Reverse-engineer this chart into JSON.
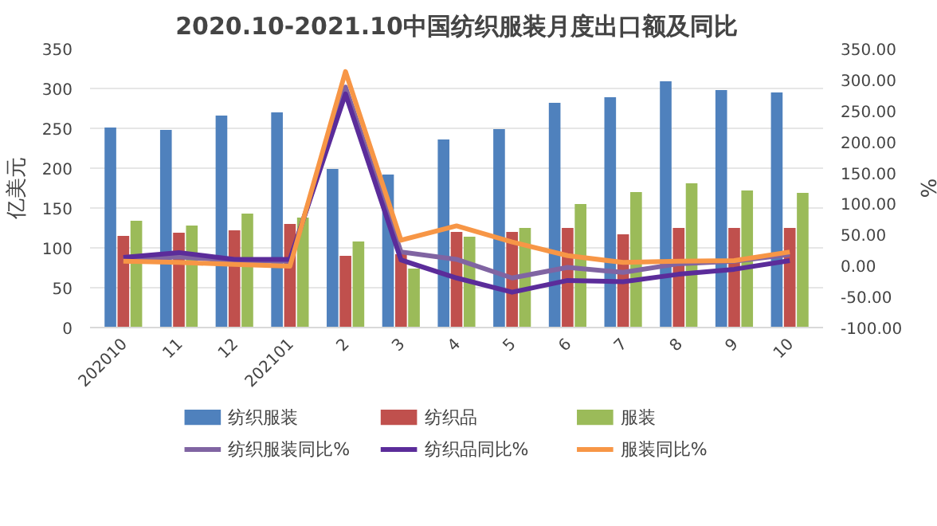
{
  "chart_data": {
    "type": "bar",
    "title": "2020.10-2021.10中国纺织服装月度出口额及同比",
    "ylabel": "亿美元",
    "y2label": "%",
    "categories": [
      "202010",
      "11",
      "12",
      "202101",
      "2",
      "3",
      "4",
      "5",
      "6",
      "7",
      "8",
      "9",
      "10"
    ],
    "series": [
      {
        "name": "纺织服装",
        "color": "#4f81bd",
        "values": [
          251,
          248,
          266,
          270,
          199,
          192,
          236,
          249,
          282,
          289,
          309,
          298,
          295
        ]
      },
      {
        "name": "纺织品",
        "color": "#c0504d",
        "values": [
          115,
          119,
          122,
          130,
          90,
          92,
          120,
          120,
          125,
          117,
          125,
          125,
          125
        ]
      },
      {
        "name": "服装",
        "color": "#9bbb59",
        "values": [
          134,
          128,
          143,
          138,
          108,
          74,
          114,
          125,
          155,
          170,
          181,
          172,
          169
        ]
      },
      {
        "name": "纺织服装同比%",
        "type": "line",
        "axis": "y2",
        "color": "#8064a2",
        "values": [
          10,
          14,
          8,
          7,
          288,
          22,
          10,
          -20,
          -3,
          -11,
          3,
          7,
          18
        ]
      },
      {
        "name": "纺织品同比%",
        "type": "line",
        "axis": "y2",
        "color": "#5b2c9a",
        "values": [
          13,
          21,
          10,
          10,
          277,
          9,
          -20,
          -43,
          -24,
          -26,
          -14,
          -6,
          8
        ]
      },
      {
        "name": "服装同比%",
        "type": "line",
        "axis": "y2",
        "color": "#f79646",
        "values": [
          7,
          5,
          2,
          -1,
          313,
          41,
          64,
          38,
          16,
          5,
          7,
          8,
          22
        ]
      }
    ],
    "ylim": [
      0,
      350
    ],
    "yticks": [
      0,
      50,
      100,
      150,
      200,
      250,
      300,
      350
    ],
    "y2lim": [
      -100,
      350
    ],
    "y2ticks": [
      {
        "value": -100,
        "label": "-100.00"
      },
      {
        "value": -50,
        "label": "-50.00"
      },
      {
        "value": 0,
        "label": "0.00"
      },
      {
        "value": 50,
        "label": "50.00"
      },
      {
        "value": 100,
        "label": "100.00"
      },
      {
        "value": 150,
        "label": "150.00"
      },
      {
        "value": 200,
        "label": "200.00"
      },
      {
        "value": 250,
        "label": "250.00"
      },
      {
        "value": 300,
        "label": "300.00"
      },
      {
        "value": 350,
        "label": "350.00"
      }
    ],
    "grid": "y",
    "legend": "bottom"
  }
}
